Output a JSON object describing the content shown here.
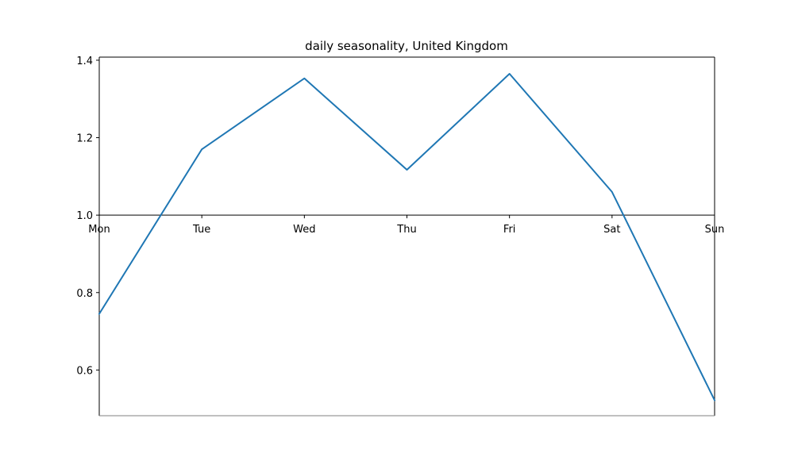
{
  "chart_data": {
    "type": "line",
    "title": "daily seasonality, United Kingdom",
    "categories": [
      "Mon",
      "Tue",
      "Wed",
      "Thu",
      "Fri",
      "Sat",
      "Sun"
    ],
    "series": [
      {
        "values": [
          0.745,
          1.17,
          1.353,
          1.117,
          1.365,
          1.06,
          0.522
        ],
        "color": "#1f77b4"
      }
    ],
    "baseline": 1.0,
    "ylim": [
      0.482,
      1.408
    ],
    "yticks": [
      0.6,
      0.8,
      1.0,
      1.2,
      1.4
    ],
    "ytick_labels": [
      "0.6",
      "0.8",
      "1.0",
      "1.2",
      "1.4"
    ],
    "xlabel": "",
    "ylabel": "",
    "grid": false,
    "legend": "none"
  }
}
